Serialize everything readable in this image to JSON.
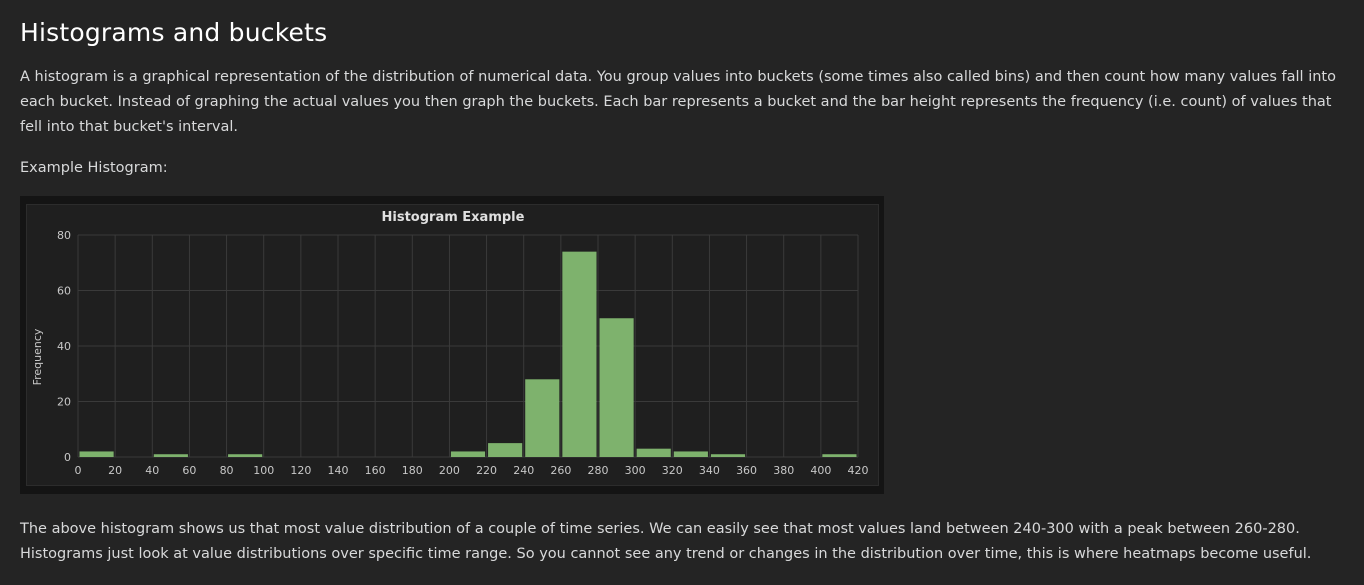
{
  "page": {
    "title": "Histograms and buckets",
    "paragraph1": "A histogram is a graphical representation of the distribution of numerical data. You group values into buckets (some times also called bins) and then count how many values fall into each bucket. Instead of graphing the actual values you then graph the buckets. Each bar represents a bucket and the bar height represents the frequency (i.e. count) of values that fell into that bucket's interval.",
    "example_label": "Example Histogram:",
    "paragraph2": "The above histogram shows us that most value distribution of a couple of time series. We can easily see that most values land between 240-300 with a peak between 260-280. Histograms just look at value distributions over specific time range. So you cannot see any trend or changes in the distribution over time, this is where heatmaps become useful."
  },
  "chart_data": {
    "type": "bar",
    "title": "Histogram Example",
    "xlabel": "",
    "ylabel": "Frequency",
    "xlim": [
      0,
      420
    ],
    "ylim": [
      0,
      80
    ],
    "bucket_size": 20,
    "x_ticks": [
      0,
      20,
      40,
      60,
      80,
      100,
      120,
      140,
      160,
      180,
      200,
      220,
      240,
      260,
      280,
      300,
      320,
      340,
      360,
      380,
      400,
      420
    ],
    "y_ticks": [
      0,
      20,
      40,
      60,
      80
    ],
    "buckets": [
      {
        "start": 0,
        "end": 20,
        "value": 2
      },
      {
        "start": 40,
        "end": 60,
        "value": 1
      },
      {
        "start": 80,
        "end": 100,
        "value": 1
      },
      {
        "start": 200,
        "end": 220,
        "value": 2
      },
      {
        "start": 220,
        "end": 240,
        "value": 5
      },
      {
        "start": 240,
        "end": 260,
        "value": 28
      },
      {
        "start": 260,
        "end": 280,
        "value": 74
      },
      {
        "start": 280,
        "end": 300,
        "value": 50
      },
      {
        "start": 300,
        "end": 320,
        "value": 3
      },
      {
        "start": 320,
        "end": 340,
        "value": 2
      },
      {
        "start": 340,
        "end": 360,
        "value": 1
      },
      {
        "start": 400,
        "end": 420,
        "value": 1
      }
    ],
    "grid": true,
    "bar_color": "#7eb26d",
    "grid_color": "#3a3a3a"
  }
}
